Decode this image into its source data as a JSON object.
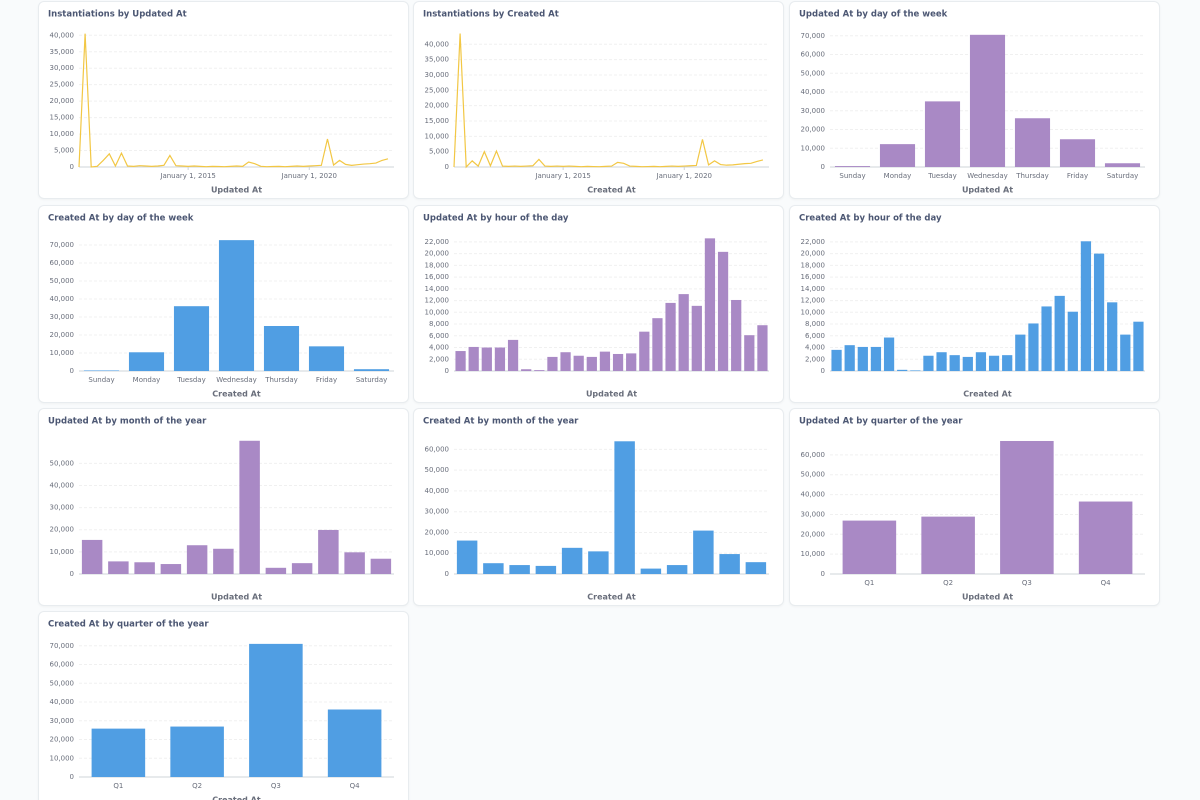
{
  "chart_data": [
    {
      "type": "line",
      "title": "Instantiations by Updated At",
      "x_label": "Updated At",
      "color": "#f2c744",
      "x": [
        "2010-07-01",
        "2010-10-01",
        "2011-01-01",
        "2011-04-01",
        "2011-07-01",
        "2011-10-01",
        "2012-01-01",
        "2012-04-01",
        "2012-07-01",
        "2012-10-01",
        "2013-01-01",
        "2013-04-01",
        "2013-07-01",
        "2013-10-01",
        "2014-01-01",
        "2014-04-01",
        "2014-07-01",
        "2014-10-01",
        "2015-01-01",
        "2015-04-01",
        "2015-07-01",
        "2015-10-01",
        "2016-01-01",
        "2016-04-01",
        "2016-07-01",
        "2016-10-01",
        "2017-01-01",
        "2017-04-01",
        "2017-07-01",
        "2017-10-01",
        "2018-01-01",
        "2018-04-01",
        "2018-07-01",
        "2018-10-01",
        "2019-01-01",
        "2019-04-01",
        "2019-07-01",
        "2019-10-01",
        "2020-01-01",
        "2020-04-01",
        "2020-07-01",
        "2020-10-01",
        "2021-01-01",
        "2021-04-01",
        "2021-07-01",
        "2021-10-01",
        "2022-01-01",
        "2022-04-01",
        "2022-07-01",
        "2022-10-01",
        "2023-01-01",
        "2023-04-01"
      ],
      "values": [
        0,
        40500,
        0,
        200,
        2000,
        4000,
        300,
        4200,
        300,
        200,
        400,
        300,
        200,
        300,
        500,
        3500,
        400,
        300,
        200,
        300,
        200,
        100,
        200,
        150,
        100,
        200,
        300,
        200,
        1500,
        1000,
        200,
        100,
        150,
        200,
        100,
        200,
        300,
        200,
        300,
        400,
        500,
        8500,
        600,
        2000,
        800,
        500,
        700,
        900,
        1000,
        1200,
        2000,
        2500
      ],
      "xlim": [
        "2010-07-01",
        "2023-07-01"
      ],
      "xticks": [
        {
          "value": "2015-01-01",
          "label": "January 1, 2015"
        },
        {
          "value": "2020-01-01",
          "label": "January 1, 2020"
        }
      ],
      "ylim": [
        0,
        41000
      ],
      "yticks": [
        0,
        {
          "value": 5000,
          "label": "5,000"
        },
        {
          "value": 10000,
          "label": "10,000"
        },
        {
          "value": 15000,
          "label": "15,000"
        },
        {
          "value": 20000,
          "label": "20,000"
        },
        {
          "value": 25000,
          "label": "25,000"
        },
        {
          "value": 30000,
          "label": "30,000"
        },
        {
          "value": 35000,
          "label": "35,000"
        },
        {
          "value": 40000,
          "label": "40,000"
        }
      ],
      "grid": true
    },
    {
      "type": "line",
      "title": "Instantiations by Created At",
      "x_label": "Created At",
      "color": "#f2c744",
      "x": [
        "2010-07-01",
        "2010-10-01",
        "2011-01-01",
        "2011-04-01",
        "2011-07-01",
        "2011-10-01",
        "2012-01-01",
        "2012-04-01",
        "2012-07-01",
        "2012-10-01",
        "2013-01-01",
        "2013-04-01",
        "2013-07-01",
        "2013-10-01",
        "2014-01-01",
        "2014-04-01",
        "2014-07-01",
        "2014-10-01",
        "2015-01-01",
        "2015-04-01",
        "2015-07-01",
        "2015-10-01",
        "2016-01-01",
        "2016-04-01",
        "2016-07-01",
        "2016-10-01",
        "2017-01-01",
        "2017-04-01",
        "2017-07-01",
        "2017-10-01",
        "2018-01-01",
        "2018-04-01",
        "2018-07-01",
        "2018-10-01",
        "2019-01-01",
        "2019-04-01",
        "2019-07-01",
        "2019-10-01",
        "2020-01-01",
        "2020-04-01",
        "2020-07-01",
        "2020-10-01",
        "2021-01-01",
        "2021-04-01",
        "2021-07-01",
        "2021-10-01",
        "2022-01-01",
        "2022-04-01",
        "2022-07-01",
        "2022-10-01",
        "2023-01-01",
        "2023-04-01"
      ],
      "values": [
        0,
        43500,
        0,
        2000,
        300,
        5000,
        400,
        5200,
        300,
        200,
        300,
        200,
        300,
        400,
        2500,
        300,
        200,
        300,
        200,
        300,
        200,
        100,
        200,
        150,
        100,
        200,
        300,
        1500,
        1200,
        300,
        200,
        100,
        150,
        200,
        100,
        200,
        300,
        200,
        300,
        400,
        500,
        9000,
        700,
        2000,
        800,
        600,
        700,
        900,
        1100,
        1200,
        1800,
        2300
      ],
      "xlim": [
        "2010-07-01",
        "2023-07-01"
      ],
      "xticks": [
        {
          "value": "2015-01-01",
          "label": "January 1, 2015"
        },
        {
          "value": "2020-01-01",
          "label": "January 1, 2020"
        }
      ],
      "ylim": [
        0,
        44000
      ],
      "yticks": [
        0,
        {
          "value": 5000,
          "label": "5,000"
        },
        {
          "value": 10000,
          "label": "10,000"
        },
        {
          "value": 15000,
          "label": "15,000"
        },
        {
          "value": 20000,
          "label": "20,000"
        },
        {
          "value": 25000,
          "label": "25,000"
        },
        {
          "value": 30000,
          "label": "30,000"
        },
        {
          "value": 35000,
          "label": "35,000"
        },
        {
          "value": 40000,
          "label": "40,000"
        }
      ],
      "grid": true
    },
    {
      "type": "bar",
      "title": "Updated At by day of the week",
      "x_label": "Updated At",
      "color": "#a989c5",
      "categories": [
        "Sunday",
        "Monday",
        "Tuesday",
        "Wednesday",
        "Thursday",
        "Friday",
        "Saturday"
      ],
      "values": [
        500,
        12200,
        35000,
        70500,
        26000,
        14800,
        2000
      ],
      "ylim": [
        0,
        72000
      ],
      "yticks": [
        0,
        {
          "value": 10000,
          "label": "10,000"
        },
        {
          "value": 20000,
          "label": "20,000"
        },
        {
          "value": 30000,
          "label": "30,000"
        },
        {
          "value": 40000,
          "label": "40,000"
        },
        {
          "value": 50000,
          "label": "50,000"
        },
        {
          "value": 60000,
          "label": "60,000"
        },
        {
          "value": 70000,
          "label": "70,000"
        }
      ],
      "grid": true
    },
    {
      "type": "bar",
      "title": "Created At by day of the week",
      "x_label": "Created At",
      "color": "#509ee3",
      "categories": [
        "Sunday",
        "Monday",
        "Tuesday",
        "Wednesday",
        "Thursday",
        "Friday",
        "Saturday"
      ],
      "values": [
        300,
        10400,
        36000,
        72700,
        25000,
        13700,
        1000
      ],
      "ylim": [
        0,
        75000
      ],
      "yticks": [
        0,
        {
          "value": 10000,
          "label": "10,000"
        },
        {
          "value": 20000,
          "label": "20,000"
        },
        {
          "value": 30000,
          "label": "30,000"
        },
        {
          "value": 40000,
          "label": "40,000"
        },
        {
          "value": 50000,
          "label": "50,000"
        },
        {
          "value": 60000,
          "label": "60,000"
        },
        {
          "value": 70000,
          "label": "70,000"
        }
      ],
      "grid": true
    },
    {
      "type": "bar",
      "title": "Updated At by hour of the day",
      "x_label": "Updated At",
      "color": "#a989c5",
      "categories": [
        null,
        null,
        null,
        null,
        null,
        null,
        null,
        null,
        null,
        null,
        null,
        null,
        null,
        null,
        null,
        null,
        null,
        null,
        null,
        null,
        null,
        null,
        null,
        null
      ],
      "values": [
        3400,
        4100,
        4000,
        4000,
        5300,
        300,
        150,
        2400,
        3200,
        2600,
        2400,
        3300,
        2900,
        3000,
        6700,
        9000,
        11600,
        13100,
        11100,
        22600,
        20300,
        12100,
        6100,
        7800
      ],
      "ylim": [
        0,
        23000
      ],
      "yticks": [
        0,
        {
          "value": 2000,
          "label": "2,000"
        },
        {
          "value": 4000,
          "label": "4,000"
        },
        {
          "value": 6000,
          "label": "6,000"
        },
        {
          "value": 8000,
          "label": "8,000"
        },
        {
          "value": 10000,
          "label": "10,000"
        },
        {
          "value": 12000,
          "label": "12,000"
        },
        {
          "value": 14000,
          "label": "14,000"
        },
        {
          "value": 16000,
          "label": "16,000"
        },
        {
          "value": 18000,
          "label": "18,000"
        },
        {
          "value": 20000,
          "label": "20,000"
        },
        {
          "value": 22000,
          "label": "22,000"
        }
      ],
      "grid": true
    },
    {
      "type": "bar",
      "title": "Created At by hour of the day",
      "x_label": "Created At",
      "color": "#509ee3",
      "categories": [
        null,
        null,
        null,
        null,
        null,
        null,
        null,
        null,
        null,
        null,
        null,
        null,
        null,
        null,
        null,
        null,
        null,
        null,
        null,
        null,
        null,
        null,
        null,
        null
      ],
      "values": [
        3600,
        4400,
        4100,
        4100,
        5700,
        200,
        100,
        2600,
        3200,
        2700,
        2400,
        3200,
        2600,
        2700,
        6200,
        8100,
        11000,
        12800,
        10100,
        22100,
        20000,
        11700,
        6200,
        8400
      ],
      "ylim": [
        0,
        23000
      ],
      "yticks": [
        0,
        {
          "value": 2000,
          "label": "2,000"
        },
        {
          "value": 4000,
          "label": "4,000"
        },
        {
          "value": 6000,
          "label": "6,000"
        },
        {
          "value": 8000,
          "label": "8,000"
        },
        {
          "value": 10000,
          "label": "10,000"
        },
        {
          "value": 12000,
          "label": "12,000"
        },
        {
          "value": 14000,
          "label": "14,000"
        },
        {
          "value": 16000,
          "label": "16,000"
        },
        {
          "value": 18000,
          "label": "18,000"
        },
        {
          "value": 20000,
          "label": "20,000"
        },
        {
          "value": 22000,
          "label": "22,000"
        }
      ],
      "grid": true
    },
    {
      "type": "bar",
      "title": "Updated At by month of the year",
      "x_label": "Updated At",
      "color": "#a989c5",
      "categories": [
        null,
        null,
        null,
        null,
        null,
        null,
        null,
        null,
        null,
        null,
        null,
        null
      ],
      "values": [
        15400,
        5700,
        5300,
        4500,
        13000,
        11400,
        60200,
        2800,
        4900,
        19900,
        9800,
        6900
      ],
      "ylim": [
        0,
        61000
      ],
      "yticks": [
        0,
        {
          "value": 10000,
          "label": "10,000"
        },
        {
          "value": 20000,
          "label": "20,000"
        },
        {
          "value": 30000,
          "label": "30,000"
        },
        {
          "value": 40000,
          "label": "40,000"
        },
        {
          "value": 50000,
          "label": "50,000"
        }
      ],
      "grid": true
    },
    {
      "type": "bar",
      "title": "Created At by month of the year",
      "x_label": "Created At",
      "color": "#509ee3",
      "categories": [
        null,
        null,
        null,
        null,
        null,
        null,
        null,
        null,
        null,
        null,
        null,
        null
      ],
      "values": [
        16100,
        5200,
        4300,
        3900,
        12600,
        10900,
        63900,
        2600,
        4300,
        20900,
        9600,
        5700
      ],
      "ylim": [
        0,
        65000
      ],
      "yticks": [
        0,
        {
          "value": 10000,
          "label": "10,000"
        },
        {
          "value": 20000,
          "label": "20,000"
        },
        {
          "value": 30000,
          "label": "30,000"
        },
        {
          "value": 40000,
          "label": "40,000"
        },
        {
          "value": 50000,
          "label": "50,000"
        },
        {
          "value": 60000,
          "label": "60,000"
        }
      ],
      "grid": true
    },
    {
      "type": "bar",
      "title": "Updated At by quarter of the year",
      "x_label": "Updated At",
      "color": "#a989c5",
      "categories": [
        "Q1",
        "Q2",
        "Q3",
        "Q4"
      ],
      "values": [
        26900,
        28900,
        67000,
        36500
      ],
      "ylim": [
        0,
        68000
      ],
      "yticks": [
        0,
        {
          "value": 10000,
          "label": "10,000"
        },
        {
          "value": 20000,
          "label": "20,000"
        },
        {
          "value": 30000,
          "label": "30,000"
        },
        {
          "value": 40000,
          "label": "40,000"
        },
        {
          "value": 50000,
          "label": "50,000"
        },
        {
          "value": 60000,
          "label": "60,000"
        }
      ],
      "grid": true
    },
    {
      "type": "bar",
      "title": "Created At by quarter of the year",
      "x_label": "Created At",
      "color": "#509ee3",
      "categories": [
        "Q1",
        "Q2",
        "Q3",
        "Q4"
      ],
      "values": [
        25800,
        26900,
        71000,
        36000
      ],
      "ylim": [
        0,
        72000
      ],
      "yticks": [
        0,
        {
          "value": 10000,
          "label": "10,000"
        },
        {
          "value": 20000,
          "label": "20,000"
        },
        {
          "value": 30000,
          "label": "30,000"
        },
        {
          "value": 40000,
          "label": "40,000"
        },
        {
          "value": 50000,
          "label": "50,000"
        },
        {
          "value": 60000,
          "label": "60,000"
        },
        {
          "value": 70000,
          "label": "70,000"
        }
      ],
      "grid": true
    }
  ]
}
